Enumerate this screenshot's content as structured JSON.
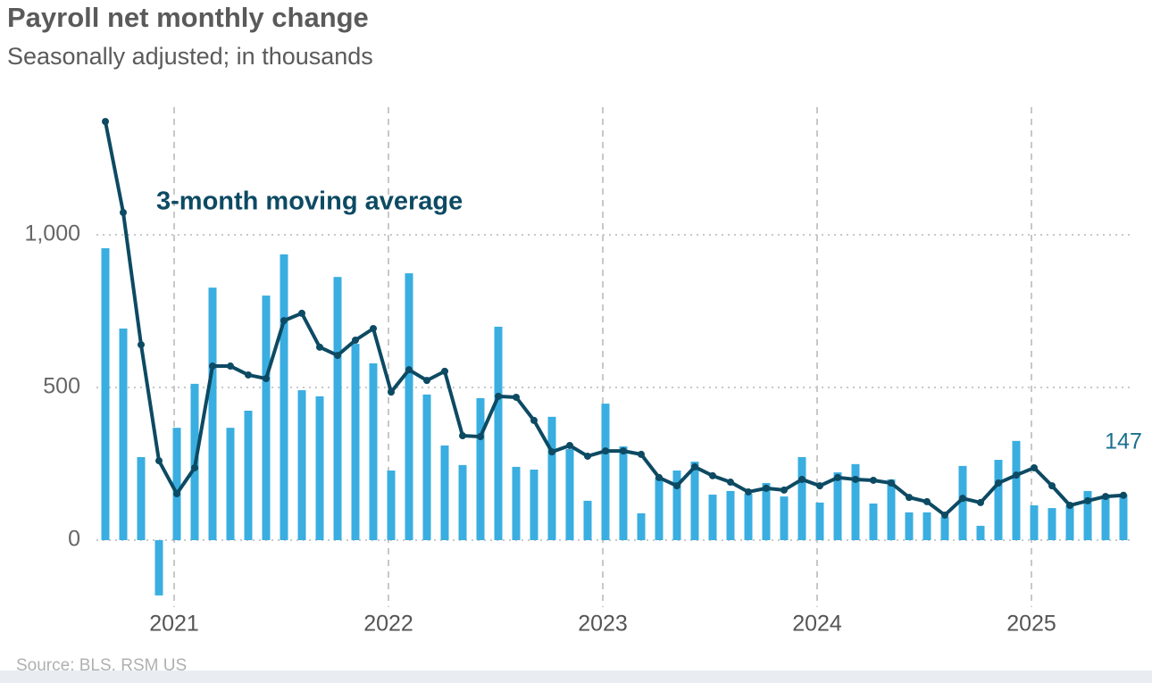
{
  "chart_data": {
    "type": "bar",
    "title": "Payroll net monthly change",
    "subtitle": "Seasonally adjusted; in thousands",
    "source": "Source: BLS, RSM US",
    "categories": [
      null,
      null,
      null,
      null,
      "2021",
      null,
      null,
      null,
      null,
      null,
      null,
      null,
      null,
      null,
      null,
      null,
      "2022",
      null,
      null,
      null,
      null,
      null,
      null,
      null,
      null,
      null,
      null,
      null,
      "2023",
      null,
      null,
      null,
      null,
      null,
      null,
      null,
      null,
      null,
      null,
      null,
      "2024",
      null,
      null,
      null,
      null,
      null,
      null,
      null,
      null,
      null,
      null,
      null,
      "2025",
      null,
      null,
      null,
      null,
      null
    ],
    "series": [
      {
        "color": "#3aaee0",
        "values": [
          956,
          693,
          272,
          -181,
          368,
          512,
          827,
          368,
          424,
          801,
          936,
          491,
          471,
          862,
          643,
          579,
          228,
          874,
          477,
          310,
          246,
          465,
          699,
          240,
          231,
          404,
          298,
          129,
          447,
          307,
          88,
          205,
          228,
          257,
          149,
          161,
          152,
          187,
          143,
          272,
          123,
          222,
          249,
          120,
          199,
          91,
          91,
          76,
          243,
          47,
          263,
          325,
          114,
          105,
          114,
          161,
          143,
          149
        ]
      },
      {
        "name": "3-month moving average",
        "type": "line",
        "color": "#0d4a63",
        "values": [
          1371,
          1073,
          640,
          260,
          152,
          237,
          570,
          570,
          541,
          529,
          719,
          743,
          632,
          605,
          655,
          693,
          485,
          558,
          523,
          553,
          342,
          339,
          471,
          468,
          392,
          289,
          310,
          275,
          292,
          292,
          281,
          205,
          178,
          240,
          211,
          190,
          158,
          170,
          164,
          199,
          178,
          205,
          199,
          196,
          187,
          140,
          126,
          82,
          137,
          123,
          187,
          213,
          237,
          178,
          114,
          129,
          143,
          147
        ]
      }
    ],
    "ylim": [
      -200,
      1400
    ],
    "yticks": [
      0,
      500,
      {
        "value": 1000,
        "label": "1,000"
      }
    ],
    "grid": true
  }
}
